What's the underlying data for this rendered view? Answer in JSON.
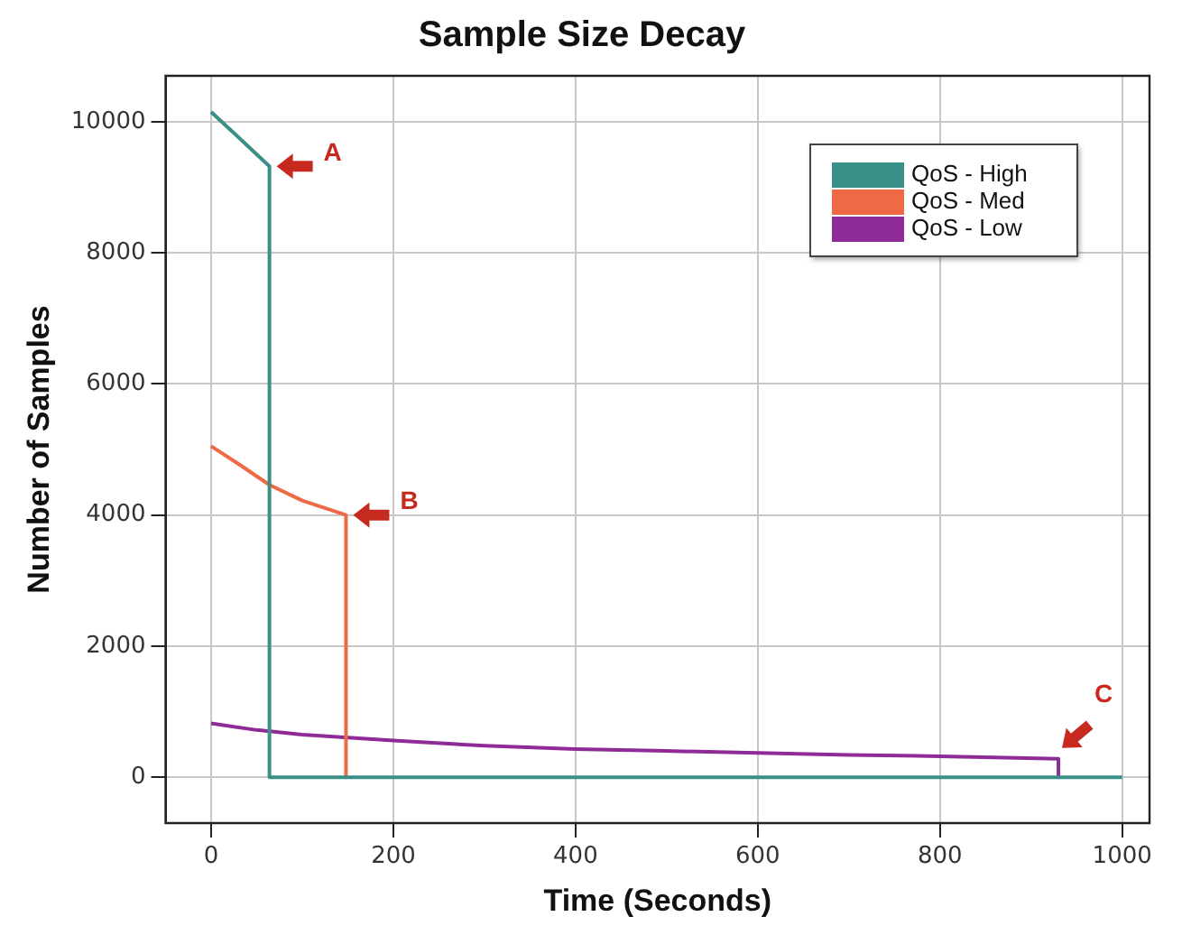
{
  "chart_data": {
    "type": "line",
    "title": "Sample Size Decay",
    "xlabel": "Time (Seconds)",
    "ylabel": "Number of Samples",
    "xlim": [
      -50,
      1030
    ],
    "xticks": [
      0,
      200,
      400,
      600,
      800,
      1000
    ],
    "ylim": [
      -700,
      10700
    ],
    "yticks": [
      0,
      2000,
      4000,
      6000,
      8000,
      10000
    ],
    "grid": true,
    "legend": "top right",
    "marker": "none",
    "line_style": "solid",
    "series": [
      {
        "name": "QoS - High",
        "color": "#3a8f86",
        "x": [
          0,
          64,
          64,
          1000
        ],
        "values": [
          10150,
          9320,
          0,
          0
        ]
      },
      {
        "name": "QoS - Med",
        "color": "#ee6a45",
        "x": [
          0,
          30,
          64,
          100,
          148,
          148
        ],
        "values": [
          5050,
          4780,
          4460,
          4220,
          4000,
          0
        ]
      },
      {
        "name": "QoS - Low",
        "color": "#8e2b96",
        "x": [
          0,
          50,
          100,
          200,
          300,
          400,
          500,
          600,
          700,
          800,
          930,
          930
        ],
        "values": [
          820,
          720,
          650,
          560,
          480,
          430,
          400,
          370,
          340,
          320,
          280,
          0
        ]
      }
    ],
    "annotations": [
      {
        "text": "A",
        "x": 64,
        "y": 9320
      },
      {
        "text": "B",
        "x": 148,
        "y": 4000
      },
      {
        "text": "C",
        "x": 930,
        "y": 280
      }
    ]
  }
}
